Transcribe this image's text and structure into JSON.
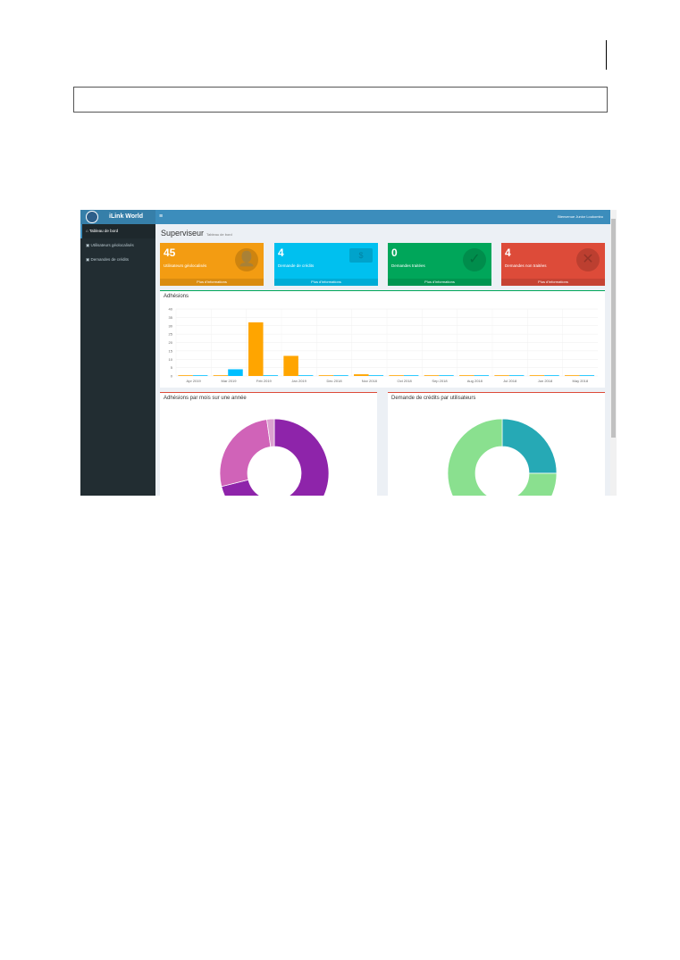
{
  "app": {
    "brand": "iLink World",
    "welcome": "Bienvenue Junior Loukombo"
  },
  "sidebar": {
    "items": [
      {
        "label": "Tableau de bord",
        "active": true
      },
      {
        "label": "Utilisateurs géolocalisés"
      },
      {
        "label": "Demandes de crédits"
      }
    ]
  },
  "page": {
    "title": "Superviseur",
    "subtitle": "Tableau de bord"
  },
  "boxes": [
    {
      "value": "45",
      "label": "Utilisateurs géolocalisés",
      "footer": "Plus d'informations",
      "color": "#f39c12",
      "icon": "user-plus-icon"
    },
    {
      "value": "4",
      "label": "Demande de crédits",
      "footer": "Plus d'informations",
      "color": "#00c0ef",
      "icon": "money-icon"
    },
    {
      "value": "0",
      "label": "Demandes traitées",
      "footer": "Plus d'informations",
      "color": "#00a65a",
      "icon": "check-icon"
    },
    {
      "value": "4",
      "label": "Demandes non traitées",
      "footer": "Plus d'informations",
      "color": "#dd4b39",
      "icon": "times-icon"
    }
  ],
  "chart_data": [
    {
      "type": "bar",
      "title": "Adhésions",
      "categories": [
        "Apr 2019",
        "Mar 2019",
        "Feb 2019",
        "Jan 2019",
        "Dec 2018",
        "Nov 2018",
        "Oct 2018",
        "Sep 2018",
        "Aug 2018",
        "Jul 2018",
        "Jun 2018",
        "May 2018"
      ],
      "series": [
        {
          "color": "#ffa500",
          "values": [
            0,
            0,
            32,
            12,
            0,
            1,
            0,
            0,
            0,
            0,
            0,
            0
          ]
        },
        {
          "color": "#00bfff",
          "values": [
            0,
            4,
            0,
            0,
            0,
            0,
            0,
            0,
            0,
            0,
            0,
            0
          ]
        }
      ],
      "ylim": [
        0,
        40
      ],
      "yticks": [
        "0",
        "5",
        "10",
        "15",
        "20",
        "25",
        "30",
        "35",
        "40"
      ],
      "grid": true
    },
    {
      "type": "pie",
      "donut": true,
      "title": "Adhésions par mois sur une année",
      "values": [
        32,
        12,
        1
      ],
      "colors": [
        "#8e24aa",
        "#d063b8",
        "#dca0d0"
      ]
    },
    {
      "type": "pie",
      "donut": true,
      "title": "Demande de crédits par utilisateurs",
      "values": [
        1,
        3
      ],
      "colors": [
        "#26a9b5",
        "#8ae08f"
      ]
    }
  ]
}
